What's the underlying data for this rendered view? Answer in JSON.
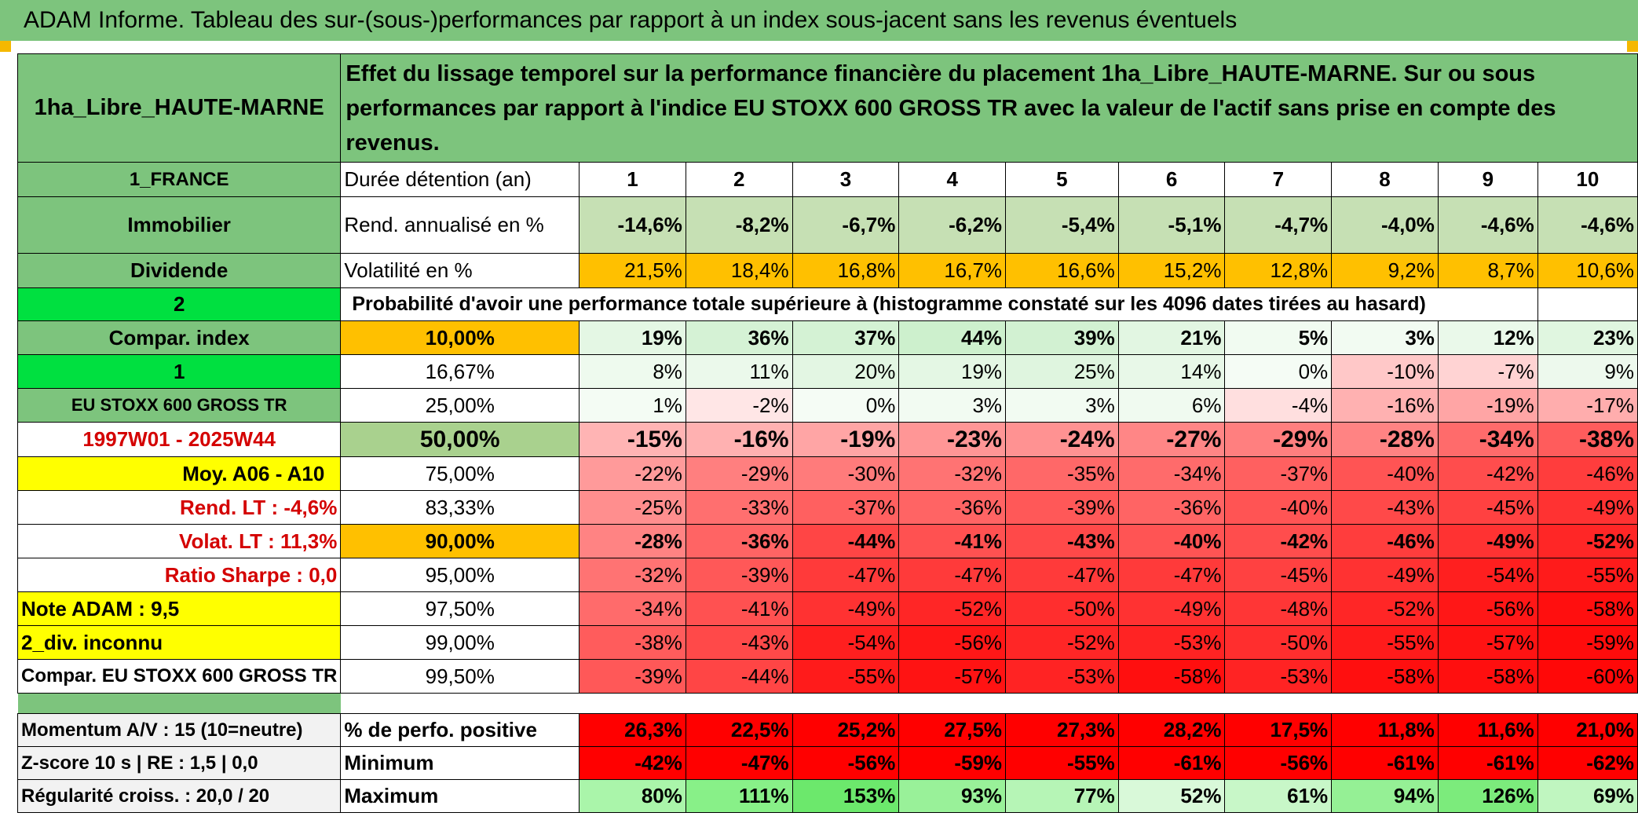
{
  "title": "ADAM Informe. Tableau des sur-(sous-)performances par rapport à un index sous-jacent sans les revenus éventuels",
  "header": {
    "fund": "1ha_Libre_HAUTE-MARNE",
    "description": "Effet du lissage temporel sur la performance financière du placement 1ha_Libre_HAUTE-MARNE. Sur ou sous performances par rapport à l'indice EU STOXX 600 GROSS TR avec la valeur de l'actif sans prise en compte des revenus."
  },
  "left_labels": {
    "country": "1_FRANCE",
    "category": "Immobilier",
    "type": "Dividende",
    "num2": "2",
    "compar_index": "Compar. index",
    "num1": "1",
    "index_name": "EU STOXX 600 GROSS TR",
    "period": "1997W01 - 2025W44",
    "moy": "Moy. A06 - A10",
    "rend_lt": "Rend. LT :    -4,6%",
    "volat_lt": "Volat. LT :   11,3%",
    "sharpe": "Ratio Sharpe :    0,0",
    "note": "Note ADAM : 9,5",
    "div": "2_div. inconnu",
    "compar": "Compar. EU STOXX 600 GROSS TR",
    "momentum": "Momentum A/V : 15 (10=neutre)",
    "zscore": "Z-score 10 s | RE : 1,5 | 0,0",
    "regularite": "Régularité croiss. : 20,0 / 20"
  },
  "row_labels": {
    "duree": "Durée détention (an)",
    "rend": "Rend. annualisé en %",
    "volat": "Volatilité en %",
    "prob": "Probabilité d'avoir une performance totale supérieure à (histogramme constaté sur les 4096 dates tirées au hasard)",
    "positive": "% de perfo. positive",
    "minimum": "Minimum",
    "maximum": "Maximum"
  },
  "years": [
    "1",
    "2",
    "3",
    "4",
    "5",
    "6",
    "7",
    "8",
    "9",
    "10"
  ],
  "rend": [
    "-14,6%",
    "-8,2%",
    "-6,7%",
    "-6,2%",
    "-5,4%",
    "-5,1%",
    "-4,7%",
    "-4,0%",
    "-4,6%",
    "-4,6%"
  ],
  "volat": [
    "21,5%",
    "18,4%",
    "16,8%",
    "16,7%",
    "16,6%",
    "15,2%",
    "12,8%",
    "9,2%",
    "8,7%",
    "10,6%"
  ],
  "percentiles": [
    {
      "p": "10,00%",
      "v": [
        19,
        36,
        37,
        44,
        39,
        21,
        5,
        3,
        12,
        23
      ],
      "bold": true
    },
    {
      "p": "16,67%",
      "v": [
        8,
        11,
        20,
        19,
        25,
        14,
        0,
        -10,
        -7,
        9
      ],
      "bold": false
    },
    {
      "p": "25,00%",
      "v": [
        1,
        -2,
        0,
        3,
        3,
        6,
        -4,
        -16,
        -19,
        -17
      ],
      "bold": false
    },
    {
      "p": "50,00%",
      "v": [
        -15,
        -16,
        -19,
        -23,
        -24,
        -27,
        -29,
        -28,
        -34,
        -38
      ],
      "bold": true
    },
    {
      "p": "75,00%",
      "v": [
        -22,
        -29,
        -30,
        -32,
        -35,
        -34,
        -37,
        -40,
        -42,
        -46
      ],
      "bold": false
    },
    {
      "p": "83,33%",
      "v": [
        -25,
        -33,
        -37,
        -36,
        -39,
        -36,
        -40,
        -43,
        -45,
        -49
      ],
      "bold": false
    },
    {
      "p": "90,00%",
      "v": [
        -28,
        -36,
        -44,
        -41,
        -43,
        -40,
        -42,
        -46,
        -49,
        -52
      ],
      "bold": true
    },
    {
      "p": "95,00%",
      "v": [
        -32,
        -39,
        -47,
        -47,
        -47,
        -47,
        -45,
        -49,
        -54,
        -55
      ],
      "bold": false
    },
    {
      "p": "97,50%",
      "v": [
        -34,
        -41,
        -49,
        -52,
        -50,
        -49,
        -48,
        -52,
        -56,
        -58
      ],
      "bold": false
    },
    {
      "p": "99,00%",
      "v": [
        -38,
        -43,
        -54,
        -56,
        -52,
        -53,
        -50,
        -55,
        -57,
        -59
      ],
      "bold": false
    },
    {
      "p": "99,50%",
      "v": [
        -39,
        -44,
        -55,
        -57,
        -53,
        -58,
        -53,
        -58,
        -58,
        -60
      ],
      "bold": false
    }
  ],
  "positive": [
    "26,3%",
    "22,5%",
    "25,2%",
    "27,5%",
    "27,3%",
    "28,2%",
    "17,5%",
    "11,8%",
    "11,6%",
    "21,0%"
  ],
  "minimum": [
    "-42%",
    "-47%",
    "-56%",
    "-59%",
    "-55%",
    "-61%",
    "-56%",
    "-61%",
    "-61%",
    "-62%"
  ],
  "maximum": [
    "80%",
    "111%",
    "153%",
    "93%",
    "77%",
    "52%",
    "61%",
    "94%",
    "126%",
    "69%"
  ],
  "colors": {
    "header_green": "#7dc47d",
    "orange": "#ffc000",
    "yellow": "#ffff00",
    "bright_green": "#00e040",
    "red": "#ff0000"
  }
}
